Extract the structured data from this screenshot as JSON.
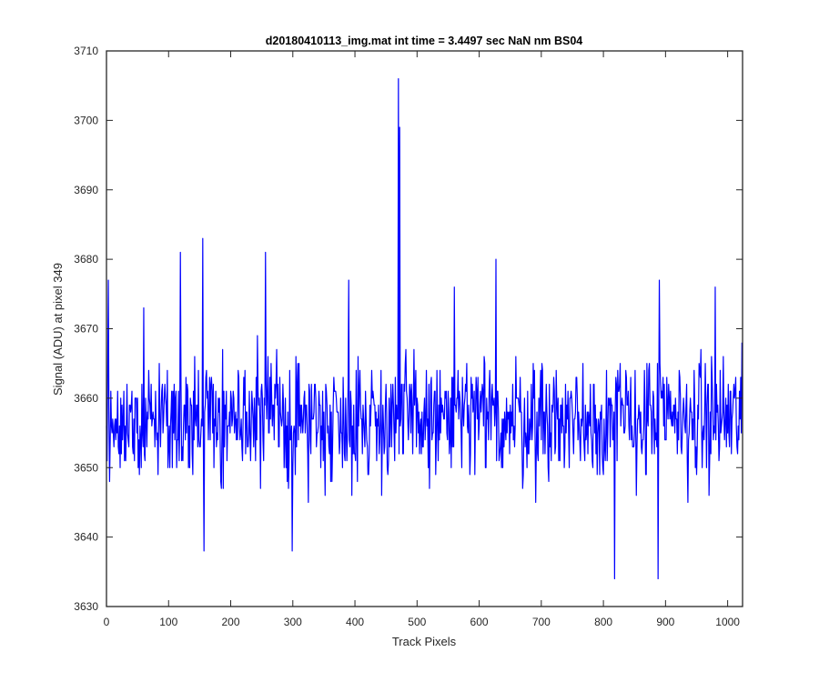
{
  "chart_data": {
    "type": "line",
    "title": "d20180410113_img.mat int time = 3.4497 sec  NaN nm BS04",
    "xlabel": "Track Pixels",
    "ylabel": "Signal (ADU) at pixel 349",
    "xlim": [
      0,
      1024
    ],
    "ylim": [
      3630,
      3710
    ],
    "xticks": [
      0,
      100,
      200,
      300,
      400,
      500,
      600,
      700,
      800,
      900,
      1000
    ],
    "yticks": [
      3630,
      3640,
      3650,
      3660,
      3670,
      3680,
      3690,
      3700,
      3710
    ],
    "grid": false,
    "series": [
      {
        "color": "#0000ff",
        "n_points": 1024,
        "baseline": 3657,
        "noise_range": [
          3641,
          3673
        ],
        "peaks": [
          {
            "x": 3,
            "y": 3677
          },
          {
            "x": 60,
            "y": 3673
          },
          {
            "x": 119,
            "y": 3681
          },
          {
            "x": 155,
            "y": 3683
          },
          {
            "x": 157,
            "y": 3638
          },
          {
            "x": 256,
            "y": 3681
          },
          {
            "x": 299,
            "y": 3638
          },
          {
            "x": 390,
            "y": 3677
          },
          {
            "x": 470,
            "y": 3706
          },
          {
            "x": 472,
            "y": 3699
          },
          {
            "x": 560,
            "y": 3676
          },
          {
            "x": 627,
            "y": 3680
          },
          {
            "x": 818,
            "y": 3634
          },
          {
            "x": 888,
            "y": 3634
          },
          {
            "x": 890,
            "y": 3677
          },
          {
            "x": 980,
            "y": 3676
          }
        ]
      }
    ]
  }
}
